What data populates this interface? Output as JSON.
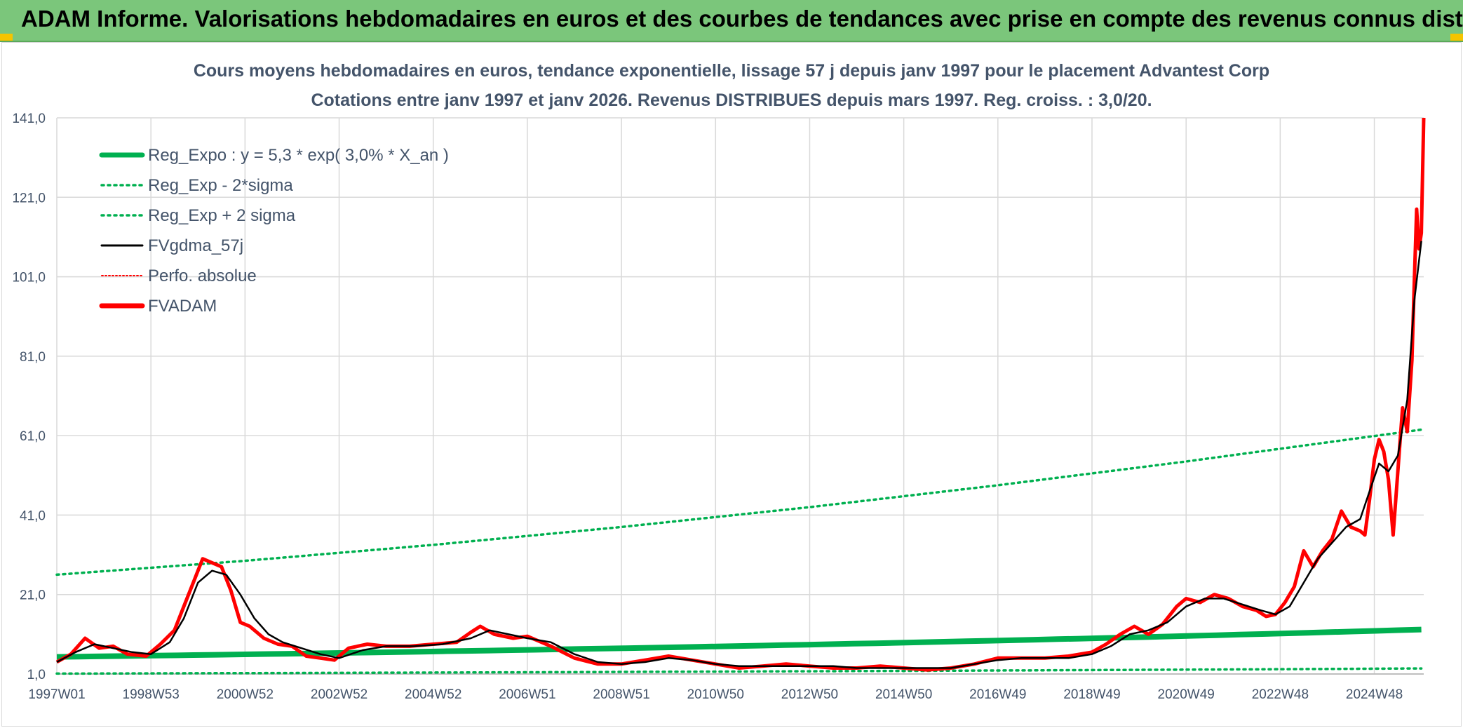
{
  "header": {
    "title": "ADAM Informe. Valorisations hebdomadaires en euros et des courbes de tendances avec prise en compte des revenus connus distribués"
  },
  "colors": {
    "banner": "#7bc67b",
    "accent_corner": "#f5c400",
    "reg_expo": "#00b050",
    "fvgdma": "#000000",
    "fvadam": "#ff0000",
    "perfo": "#ff0000"
  },
  "chart_data": {
    "type": "line",
    "title": "Cours moyens hebdomadaires en euros, tendance exponentielle, lissage 57 j depuis janv 1997 pour le placement Advantest Corp",
    "subtitle": "Cotations entre janv 1997 et janv 2026. Revenus DISTRIBUES depuis mars 1997. Reg. croiss. : 3,0/20.",
    "xlabel": "",
    "ylabel": "",
    "ylim": [
      1,
      141
    ],
    "yticks": [
      "1,0",
      "21,0",
      "41,0",
      "61,0",
      "81,0",
      "101,0",
      "121,0",
      "141,0"
    ],
    "ytick_values": [
      1,
      21,
      41,
      61,
      81,
      101,
      121,
      141
    ],
    "xlim": [
      1997.0,
      2026.05
    ],
    "xticks": [
      "1997W01",
      "1998W53",
      "2000W52",
      "2002W52",
      "2004W52",
      "2006W51",
      "2008W51",
      "2010W50",
      "2012W50",
      "2014W50",
      "2016W49",
      "2018W49",
      "2020W49",
      "2022W48",
      "2024W48"
    ],
    "xtick_positions": [
      1997.0,
      1999.0,
      2001.0,
      2003.0,
      2005.0,
      2007.0,
      2009.0,
      2011.0,
      2013.0,
      2015.0,
      2017.0,
      2019.0,
      2021.0,
      2023.0,
      2025.0
    ],
    "grid": true,
    "legend_position": "top-left",
    "legend": [
      {
        "key": "reg_expo",
        "label": "Reg_Expo : y = 5,3 * exp( 3,0% *  X_an )",
        "style": "solid-thick",
        "color": "#00b050"
      },
      {
        "key": "reg_minus",
        "label": "Reg_Exp - 2*sigma",
        "style": "dotted",
        "color": "#00b050"
      },
      {
        "key": "reg_plus",
        "label": "Reg_Exp + 2 sigma",
        "style": "dotted",
        "color": "#00b050"
      },
      {
        "key": "fvgdma",
        "label": "FVgdma_57j",
        "style": "solid",
        "color": "#000000"
      },
      {
        "key": "perfo",
        "label": "Perfo. absolue",
        "style": "dotted-thin",
        "color": "#ff0000"
      },
      {
        "key": "fvadam",
        "label": "FVADAM",
        "style": "solid-thick",
        "color": "#ff0000"
      }
    ],
    "series": [
      {
        "name": "Reg_Expo",
        "x": [
          1997.0,
          2026.0
        ],
        "values": [
          5.3,
          12.2
        ]
      },
      {
        "name": "Reg_Exp - 2*sigma",
        "x": [
          1997.0,
          2026.0
        ],
        "values": [
          1.1,
          2.4
        ]
      },
      {
        "name": "Reg_Exp + 2 sigma",
        "x": [
          1997.0,
          2001.0,
          2005.0,
          2009.0,
          2013.0,
          2017.0,
          2021.0,
          2026.0
        ],
        "values": [
          26.0,
          29.5,
          33.5,
          38.0,
          43.0,
          48.5,
          54.5,
          62.5
        ]
      },
      {
        "name": "FVADAM",
        "x": [
          1997.0,
          1997.3,
          1997.6,
          1997.9,
          1998.2,
          1998.5,
          1998.9,
          1999.2,
          1999.5,
          1999.7,
          1999.9,
          2000.1,
          2000.3,
          2000.5,
          2000.7,
          2000.9,
          2001.1,
          2001.4,
          2001.7,
          2002.0,
          2002.3,
          2002.6,
          2002.9,
          2003.2,
          2003.6,
          2004.0,
          2004.5,
          2005.0,
          2005.5,
          2005.8,
          2006.0,
          2006.3,
          2006.7,
          2007.0,
          2007.5,
          2008.0,
          2008.5,
          2009.0,
          2009.5,
          2010.0,
          2010.5,
          2011.0,
          2011.5,
          2012.0,
          2012.5,
          2013.0,
          2013.5,
          2014.0,
          2014.5,
          2015.0,
          2015.5,
          2016.0,
          2016.5,
          2017.0,
          2017.5,
          2018.0,
          2018.5,
          2019.0,
          2019.3,
          2019.6,
          2019.9,
          2020.2,
          2020.5,
          2020.8,
          2021.0,
          2021.3,
          2021.6,
          2021.9,
          2022.2,
          2022.5,
          2022.7,
          2022.9,
          2023.1,
          2023.3,
          2023.5,
          2023.7,
          2023.9,
          2024.1,
          2024.3,
          2024.5,
          2024.7,
          2024.8,
          2024.9,
          2025.0,
          2025.1,
          2025.2,
          2025.3,
          2025.4,
          2025.5,
          2025.6,
          2025.7,
          2025.8,
          2025.85,
          2025.9,
          2025.95,
          2026.0,
          2026.05
        ],
        "values": [
          4.0,
          6.0,
          10.0,
          7.5,
          8.0,
          6.0,
          5.5,
          8.5,
          12.0,
          18.0,
          24.0,
          30.0,
          29.0,
          28.0,
          22.0,
          14.0,
          13.0,
          10.0,
          8.5,
          8.0,
          5.5,
          5.0,
          4.5,
          7.5,
          8.5,
          8.0,
          8.0,
          8.5,
          9.0,
          11.5,
          13.0,
          11.0,
          10.0,
          10.5,
          8.0,
          5.0,
          3.5,
          3.5,
          4.5,
          5.5,
          4.5,
          3.5,
          2.5,
          3.0,
          3.5,
          3.0,
          2.5,
          2.5,
          3.0,
          2.5,
          2.0,
          2.5,
          3.5,
          5.0,
          5.0,
          5.0,
          5.5,
          6.5,
          8.5,
          11.0,
          13.0,
          11.0,
          13.5,
          18.0,
          20.0,
          19.0,
          21.0,
          20.0,
          18.0,
          17.0,
          15.5,
          16.0,
          19.0,
          23.0,
          32.0,
          28.0,
          32.0,
          35.0,
          42.0,
          38.0,
          37.0,
          36.0,
          45.0,
          55.0,
          60.0,
          57.0,
          50.0,
          36.0,
          52.0,
          68.0,
          62.0,
          80.0,
          100.0,
          118.0,
          108.0,
          112.0,
          141.0
        ]
      },
      {
        "name": "FVgdma_57j",
        "x": [
          1997.0,
          1997.4,
          1997.8,
          1998.2,
          1998.6,
          1999.0,
          1999.4,
          1999.7,
          2000.0,
          2000.3,
          2000.6,
          2000.9,
          2001.2,
          2001.5,
          2001.8,
          2002.2,
          2002.6,
          2003.0,
          2003.5,
          2004.0,
          2004.6,
          2005.2,
          2005.8,
          2006.2,
          2006.6,
          2007.0,
          2007.5,
          2008.0,
          2008.5,
          2009.0,
          2009.5,
          2010.0,
          2010.5,
          2011.0,
          2011.5,
          2012.0,
          2012.5,
          2013.0,
          2013.5,
          2014.0,
          2014.5,
          2015.0,
          2015.5,
          2016.0,
          2016.5,
          2017.0,
          2017.5,
          2018.0,
          2018.5,
          2019.0,
          2019.4,
          2019.8,
          2020.2,
          2020.6,
          2021.0,
          2021.4,
          2021.8,
          2022.2,
          2022.6,
          2022.9,
          2023.2,
          2023.5,
          2023.8,
          2024.1,
          2024.4,
          2024.7,
          2024.9,
          2025.1,
          2025.3,
          2025.5,
          2025.7,
          2025.85,
          2026.0
        ],
        "values": [
          4.0,
          6.5,
          8.5,
          7.5,
          6.5,
          6.0,
          9.0,
          15.0,
          24.0,
          27.0,
          26.0,
          21.0,
          15.0,
          11.0,
          9.0,
          7.5,
          6.0,
          5.0,
          7.0,
          8.0,
          8.0,
          8.5,
          10.0,
          12.0,
          11.0,
          10.0,
          9.0,
          6.0,
          4.0,
          3.5,
          4.0,
          5.0,
          4.5,
          3.5,
          3.0,
          3.0,
          3.0,
          3.0,
          3.0,
          2.5,
          2.5,
          2.5,
          2.5,
          2.5,
          3.5,
          4.5,
          5.0,
          5.0,
          5.0,
          6.0,
          8.0,
          11.0,
          12.0,
          14.0,
          18.0,
          20.0,
          20.0,
          18.5,
          17.0,
          16.0,
          18.0,
          24.0,
          30.0,
          34.0,
          38.0,
          40.0,
          47.0,
          54.0,
          52.0,
          56.0,
          70.0,
          95.0,
          110.0
        ]
      }
    ]
  }
}
